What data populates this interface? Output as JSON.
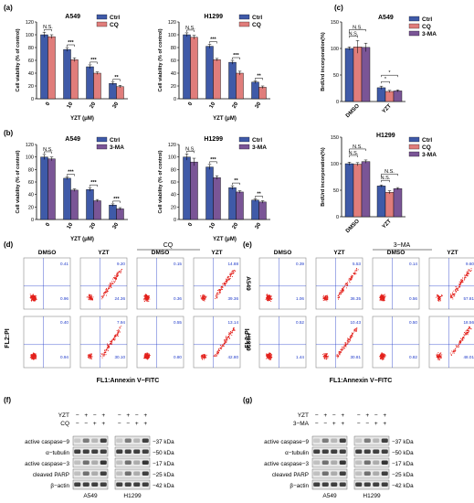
{
  "colors": {
    "ctrl": "#3f5aa8",
    "cq": "#e07d7b",
    "ma": "#7a5596",
    "dot": "#e3201b",
    "axis": "#000000",
    "gate": "#8a8a8a",
    "quadrant": "#1a36c8",
    "band": "#222222"
  },
  "panel_labels": {
    "a": "(a)",
    "b": "(b)",
    "c": "(c)",
    "d": "(d)",
    "e": "(e)",
    "f": "(f)",
    "g": "(g)"
  },
  "bar_axes": {
    "viability_ylabel": "Cell viability (% of control)",
    "viability_xlabel": "YZT (μM)",
    "brdu_ylabel": "BrdUrd incorporation(%)"
  },
  "chart_data": [
    {
      "type": "bar",
      "panel": "a",
      "cell": "A549",
      "categories": [
        "0",
        "10",
        "20",
        "30"
      ],
      "series": [
        {
          "name": "Ctrl",
          "values": [
            100,
            77,
            50,
            24
          ],
          "errors": [
            4,
            3,
            3,
            2
          ]
        },
        {
          "name": "CQ",
          "values": [
            97,
            61,
            40,
            19
          ],
          "errors": [
            3,
            3,
            2,
            2
          ]
        }
      ],
      "ylim": [
        0,
        120
      ],
      "yticks": [
        0,
        20,
        40,
        60,
        80,
        100,
        120
      ],
      "significance": [
        "N.S.",
        "***",
        "***",
        "**"
      ]
    },
    {
      "type": "bar",
      "panel": "a",
      "cell": "H1299",
      "categories": [
        "0",
        "10",
        "20",
        "30"
      ],
      "series": [
        {
          "name": "Ctrl",
          "values": [
            100,
            82,
            57,
            26
          ],
          "errors": [
            3,
            3,
            3,
            2
          ]
        },
        {
          "name": "CQ",
          "values": [
            96,
            61,
            40,
            18
          ],
          "errors": [
            3,
            2,
            3,
            2
          ]
        }
      ],
      "ylim": [
        0,
        120
      ],
      "yticks": [
        0,
        20,
        40,
        60,
        80,
        100,
        120
      ],
      "significance": [
        "N.S.",
        "***",
        "***",
        "**"
      ]
    },
    {
      "type": "bar",
      "panel": "b",
      "cell": "A549",
      "categories": [
        "0",
        "10",
        "20",
        "30"
      ],
      "series": [
        {
          "name": "Ctrl",
          "values": [
            100,
            66,
            48,
            23
          ],
          "errors": [
            4,
            2,
            3,
            2
          ]
        },
        {
          "name": "3-MA",
          "values": [
            97,
            47,
            30,
            17
          ],
          "errors": [
            3,
            2,
            2,
            2
          ]
        }
      ],
      "ylim": [
        0,
        120
      ],
      "yticks": [
        0,
        20,
        40,
        60,
        80,
        100,
        120
      ],
      "significance": [
        "N.S.",
        "***",
        "***",
        "***"
      ]
    },
    {
      "type": "bar",
      "panel": "b",
      "cell": "H1299",
      "categories": [
        "0",
        "10",
        "20",
        "30"
      ],
      "series": [
        {
          "name": "Ctrl",
          "values": [
            100,
            84,
            51,
            31
          ],
          "errors": [
            5,
            4,
            3,
            2
          ]
        },
        {
          "name": "3-MA",
          "values": [
            92,
            67,
            44,
            28
          ],
          "errors": [
            6,
            3,
            2,
            2
          ]
        }
      ],
      "ylim": [
        0,
        120
      ],
      "yticks": [
        0,
        20,
        40,
        60,
        80,
        100,
        120
      ],
      "significance": [
        "N.S.",
        "***",
        "**",
        "**"
      ]
    },
    {
      "type": "bar",
      "panel": "c",
      "cell": "A549",
      "categories": [
        "DMSO",
        "YZT"
      ],
      "series": [
        {
          "name": "Ctrl",
          "values": [
            100,
            26
          ],
          "errors": [
            3,
            3
          ]
        },
        {
          "name": "CQ",
          "values": [
            103,
            19
          ],
          "errors": [
            12,
            2
          ]
        },
        {
          "name": "3-MA",
          "values": [
            102,
            20
          ],
          "errors": [
            8,
            2
          ]
        }
      ],
      "ylim": [
        0,
        150
      ],
      "yticks": [
        0,
        50,
        100,
        150
      ],
      "significance": [
        [
          "N.S.",
          "N.S."
        ],
        [
          "*",
          "*"
        ]
      ]
    },
    {
      "type": "bar",
      "panel": "c",
      "cell": "H1299",
      "categories": [
        "DMSO",
        "YZT"
      ],
      "series": [
        {
          "name": "Ctrl",
          "values": [
            100,
            58
          ],
          "errors": [
            3,
            2
          ]
        },
        {
          "name": "CQ",
          "values": [
            99,
            46
          ],
          "errors": [
            3,
            3
          ]
        },
        {
          "name": "3-MA",
          "values": [
            104,
            53
          ],
          "errors": [
            3,
            2
          ]
        }
      ],
      "ylim": [
        0,
        150
      ],
      "yticks": [
        0,
        50,
        100,
        150
      ],
      "significance": [
        [
          "N.S.",
          "N.S."
        ],
        [
          "N.S.",
          "N.S."
        ]
      ]
    }
  ],
  "flow": {
    "ylabel": "FL2:PI",
    "xlabel": "FL1:Annexin V−FITC",
    "d": {
      "group_label": "CQ",
      "columns": [
        "DMSO",
        "YZT",
        "DMSO",
        "YZT"
      ],
      "rows": [
        "A549",
        "H1299"
      ],
      "quadrants": [
        [
          [
            "0.41",
            "0.96"
          ],
          [
            "9.20",
            "24.36"
          ],
          [
            "0.15",
            "0.36"
          ],
          [
            "14.88",
            "39.36"
          ]
        ],
        [
          [
            "0.40",
            "0.94"
          ],
          [
            "7.94",
            "30.10"
          ],
          [
            "0.55",
            "0.80"
          ],
          [
            "13.14",
            "42.80"
          ]
        ]
      ]
    },
    "e": {
      "group_label": "3−MA",
      "columns": [
        "DMSO",
        "YZT",
        "DMSO",
        "YZT"
      ],
      "rows": [
        "A549",
        "H1299"
      ],
      "quadrants": [
        [
          [
            "0.39",
            "1.06"
          ],
          [
            "5.53",
            "36.35"
          ],
          [
            "0.14",
            "0.56"
          ],
          [
            "9.60",
            "57.81"
          ]
        ],
        [
          [
            "0.52",
            "1.44"
          ],
          [
            "10.43",
            "30.81"
          ],
          [
            "0.50",
            "0.82"
          ],
          [
            "18.56",
            "48.01"
          ]
        ]
      ]
    }
  },
  "western": {
    "f": {
      "treat_rows": [
        {
          "label": "YZT",
          "a549": [
            "−",
            "+",
            "−",
            "+"
          ],
          "h1299": [
            "−",
            "+",
            "−",
            "+"
          ]
        },
        {
          "label": "CQ",
          "a549": [
            "−",
            "−",
            "+",
            "+"
          ],
          "h1299": [
            "−",
            "−",
            "+",
            "+"
          ]
        }
      ],
      "proteins": [
        "active caspase−9",
        "α−tubulin",
        "active caspase−3",
        "cleaved PARP",
        "β−actin"
      ],
      "sizes": [
        "−37 kDa",
        "−50 kDa",
        "−17 kDa",
        "−25 kDa",
        "−42 kDa"
      ],
      "cells": [
        "A549",
        "H1299"
      ]
    },
    "g": {
      "treat_rows": [
        {
          "label": "YZT",
          "a549": [
            "−",
            "+",
            "−",
            "+"
          ],
          "h1299": [
            "−",
            "+",
            "−",
            "+"
          ]
        },
        {
          "label": "3−MA",
          "a549": [
            "−",
            "−",
            "+",
            "+"
          ],
          "h1299": [
            "−",
            "−",
            "+",
            "+"
          ]
        }
      ],
      "proteins": [
        "active caspase−9",
        "α−tubulin",
        "active caspase−3",
        "cleaved PARP",
        "β−actin"
      ],
      "sizes": [
        "−37 kDa",
        "−50 kDa",
        "−17 kDa",
        "−25 kDa",
        "−42 kDa"
      ],
      "cells": [
        "A549",
        "H1299"
      ]
    }
  }
}
